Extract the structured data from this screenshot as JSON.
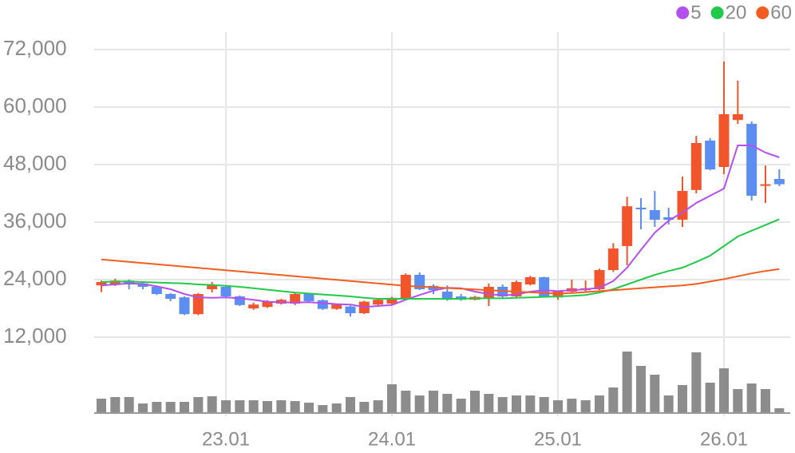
{
  "chart_data": {
    "type": "candlestick",
    "categories": [
      null,
      null,
      null,
      null,
      null,
      null,
      null,
      null,
      null,
      "23.01",
      null,
      null,
      null,
      null,
      null,
      null,
      null,
      null,
      null,
      null,
      null,
      "24.01",
      null,
      null,
      null,
      null,
      null,
      null,
      null,
      null,
      null,
      null,
      null,
      "25.01",
      null,
      null,
      null,
      null,
      null,
      null,
      null,
      null,
      null,
      null,
      null,
      "26.01",
      null,
      null,
      null,
      null
    ],
    "open": [
      22800,
      23000,
      23800,
      23200,
      22500,
      21000,
      20300,
      16800,
      22000,
      22500,
      20500,
      18000,
      18300,
      19000,
      19000,
      21000,
      19700,
      17900,
      18400,
      17000,
      18800,
      19000,
      20000,
      25000,
      22700,
      21500,
      20500,
      19800,
      20000,
      22500,
      20500,
      23000,
      24500,
      20300,
      21500,
      21800,
      22000,
      26000,
      31000,
      39000,
      38500,
      37000,
      36500,
      42700,
      53000,
      47500,
      57300,
      56500,
      43600,
      45000
    ],
    "high": [
      23800,
      24200,
      24000,
      23300,
      22600,
      21200,
      20500,
      21200,
      23500,
      22700,
      20700,
      19200,
      19700,
      20000,
      21300,
      21200,
      19900,
      19000,
      18600,
      19600,
      20000,
      20400,
      25300,
      25500,
      23000,
      22800,
      21000,
      20600,
      23200,
      23000,
      23800,
      24800,
      24600,
      21700,
      24000,
      23800,
      26300,
      31600,
      41300,
      41000,
      42500,
      39000,
      45500,
      54000,
      53500,
      69500,
      65500,
      57000,
      47800,
      47000
    ],
    "low": [
      21400,
      22700,
      22000,
      22000,
      20800,
      19500,
      16600,
      16600,
      21300,
      20200,
      18500,
      17700,
      18100,
      18800,
      18700,
      19300,
      17700,
      17700,
      16300,
      16800,
      18600,
      18800,
      19800,
      21800,
      21000,
      19600,
      19600,
      19700,
      18500,
      20100,
      20300,
      22800,
      20300,
      19800,
      21200,
      21400,
      21800,
      25600,
      27000,
      34500,
      35000,
      35500,
      35000,
      42000,
      46800,
      46000,
      56500,
      40500,
      40000,
      43500
    ],
    "close": [
      23500,
      23800,
      23000,
      22500,
      21000,
      20000,
      16800,
      21000,
      23000,
      20500,
      18700,
      18800,
      19500,
      19800,
      21000,
      19500,
      17900,
      18800,
      17000,
      19400,
      19800,
      20200,
      25000,
      22000,
      21800,
      19800,
      19800,
      20400,
      22500,
      20500,
      23500,
      24500,
      20500,
      21500,
      22200,
      22200,
      26000,
      30500,
      39300,
      38700,
      36500,
      36500,
      42500,
      52500,
      47000,
      58500,
      58500,
      41500,
      43900,
      43900
    ],
    "volume": [
      18,
      20,
      20,
      12,
      14,
      14,
      14,
      20,
      21,
      16,
      16,
      16,
      15,
      16,
      15,
      13,
      10,
      12,
      20,
      14,
      16,
      36,
      28,
      22,
      28,
      24,
      18,
      28,
      24,
      20,
      22,
      22,
      20,
      16,
      18,
      16,
      22,
      32,
      77,
      59,
      48,
      22,
      35,
      76,
      38,
      56,
      30,
      37,
      30,
      6
    ],
    "up_color": "#f2552c",
    "down_color": "#5b8ef0",
    "volume_color": "#8c8c8c",
    "series": [
      {
        "name": "5",
        "color": "#b44ff0",
        "values": [
          22800,
          23000,
          23200,
          23100,
          22600,
          22000,
          21000,
          20300,
          20200,
          20300,
          20100,
          19800,
          19400,
          19300,
          19200,
          19300,
          19100,
          18900,
          18800,
          18300,
          18500,
          18700,
          19800,
          20800,
          21700,
          22300,
          22200,
          21500,
          21000,
          20700,
          20900,
          21500,
          21800,
          21600,
          21800,
          22000,
          22300,
          23700,
          26500,
          30200,
          33800,
          36300,
          38000,
          40000,
          41500,
          43000,
          52000,
          52000,
          50500,
          49500
        ]
      },
      {
        "name": "20",
        "color": "#22c94a",
        "values": [
          23500,
          23600,
          23600,
          23500,
          23400,
          23300,
          23200,
          23000,
          22900,
          22700,
          22500,
          22200,
          21900,
          21600,
          21300,
          21100,
          20900,
          20700,
          20500,
          20200,
          20000,
          20000,
          20000,
          20000,
          20000,
          20000,
          20000,
          20100,
          20100,
          20100,
          20200,
          20300,
          20400,
          20500,
          20600,
          20800,
          21300,
          22000,
          23000,
          24000,
          25000,
          25800,
          26500,
          27700,
          29000,
          31000,
          33000,
          34200,
          35400,
          36600
        ]
      },
      {
        "name": "60",
        "color": "#f25d22",
        "values": [
          28200,
          27950,
          27700,
          27450,
          27200,
          26950,
          26700,
          26450,
          26200,
          25950,
          25700,
          25450,
          25200,
          24950,
          24700,
          24450,
          24200,
          23950,
          23700,
          23450,
          23200,
          22950,
          22700,
          22550,
          22400,
          22250,
          22100,
          21950,
          21800,
          21650,
          21500,
          21350,
          21200,
          21100,
          21200,
          21400,
          21600,
          21800,
          22000,
          22200,
          22400,
          22600,
          22800,
          23100,
          23600,
          24100,
          24700,
          25300,
          25800,
          26200
        ]
      }
    ],
    "ylim": [
      12000,
      72000
    ],
    "yticks": [
      {
        "value": 12000,
        "label": "12,000"
      },
      {
        "value": 24000,
        "label": "24,000"
      },
      {
        "value": 36000,
        "label": "36,000"
      },
      {
        "value": 48000,
        "label": "48,000"
      },
      {
        "value": 60000,
        "label": "60,000"
      },
      {
        "value": 72000,
        "label": "72,000"
      }
    ],
    "grid": true,
    "legend": "top-right"
  }
}
